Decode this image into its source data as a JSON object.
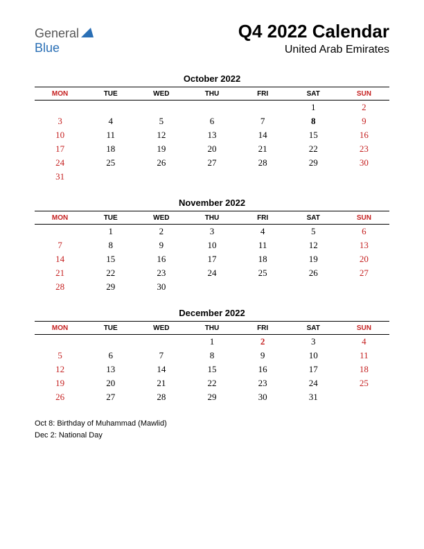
{
  "logo": {
    "word1": "General",
    "word2": "Blue"
  },
  "title": "Q4 2022 Calendar",
  "subtitle": "United Arab Emirates",
  "colors": {
    "red": "#c41e1e",
    "black": "#000000",
    "logo_blue": "#2a6fb5",
    "logo_gray": "#555555",
    "background": "#ffffff"
  },
  "font": {
    "heading_family": "Arial",
    "body_family": "Georgia",
    "main_title_size": 26,
    "subtitle_size": 16,
    "month_title_size": 13,
    "weekday_size": 10,
    "day_size": 13,
    "holiday_size": 11
  },
  "weekdays": [
    "MON",
    "TUE",
    "WED",
    "THU",
    "FRI",
    "SAT",
    "SUN"
  ],
  "weekday_red_cols": [
    0,
    6
  ],
  "months": [
    {
      "name": "October 2022",
      "weeks": [
        [
          "",
          "",
          "",
          "",
          "",
          "1",
          "2"
        ],
        [
          "3",
          "4",
          "5",
          "6",
          "7",
          "8",
          "9"
        ],
        [
          "10",
          "11",
          "12",
          "13",
          "14",
          "15",
          "16"
        ],
        [
          "17",
          "18",
          "19",
          "20",
          "21",
          "22",
          "23"
        ],
        [
          "24",
          "25",
          "26",
          "27",
          "28",
          "29",
          "30"
        ],
        [
          "31",
          "",
          "",
          "",
          "",
          "",
          ""
        ]
      ],
      "red_cols": [
        0,
        6
      ],
      "bold_days": [
        "8"
      ]
    },
    {
      "name": "November 2022",
      "weeks": [
        [
          "",
          "1",
          "2",
          "3",
          "4",
          "5",
          "6"
        ],
        [
          "7",
          "8",
          "9",
          "10",
          "11",
          "12",
          "13"
        ],
        [
          "14",
          "15",
          "16",
          "17",
          "18",
          "19",
          "20"
        ],
        [
          "21",
          "22",
          "23",
          "24",
          "25",
          "26",
          "27"
        ],
        [
          "28",
          "29",
          "30",
          "",
          "",
          "",
          ""
        ]
      ],
      "red_cols": [
        0,
        6
      ],
      "bold_days": []
    },
    {
      "name": "December 2022",
      "weeks": [
        [
          "",
          "",
          "",
          "1",
          "2",
          "3",
          "4"
        ],
        [
          "5",
          "6",
          "7",
          "8",
          "9",
          "10",
          "11"
        ],
        [
          "12",
          "13",
          "14",
          "15",
          "16",
          "17",
          "18"
        ],
        [
          "19",
          "20",
          "21",
          "22",
          "23",
          "24",
          "25"
        ],
        [
          "26",
          "27",
          "28",
          "29",
          "30",
          "31",
          ""
        ]
      ],
      "red_cols": [
        0,
        6
      ],
      "bold_days": [
        "2"
      ],
      "extra_red_days": [
        "2"
      ]
    }
  ],
  "holidays": [
    "Oct 8: Birthday of Muhammad (Mawlid)",
    "Dec 2: National Day"
  ]
}
